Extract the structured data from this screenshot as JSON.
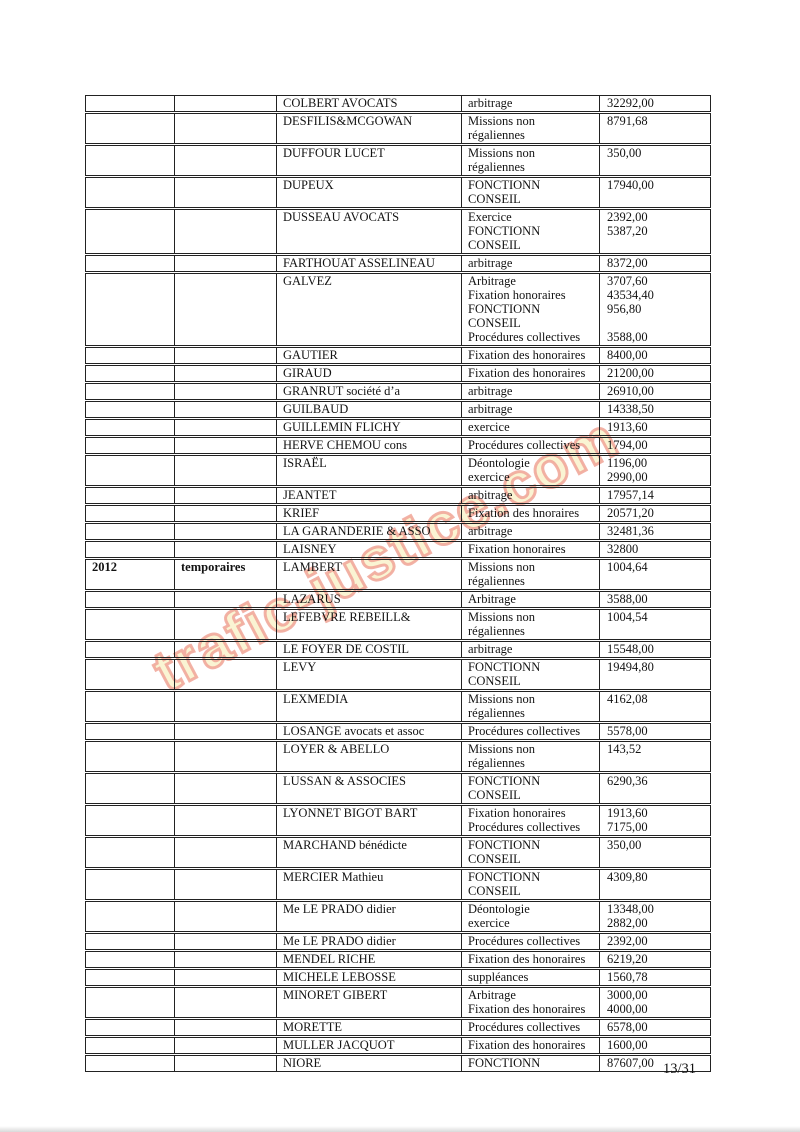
{
  "page": {
    "number_label": "13/31"
  },
  "watermark": {
    "text": "trafic-justice.com",
    "fill_color": "#faf3cf",
    "outline_color": "#ee9b8c"
  },
  "table": {
    "columns": [
      "year",
      "category",
      "firm_name",
      "mission_type",
      "amount"
    ],
    "rows": [
      {
        "year": "",
        "category": "",
        "name": "COLBERT AVOCATS",
        "type": "arbitrage",
        "amount": "32292,00"
      },
      {
        "year": "",
        "category": "",
        "name": "DESFILIS&MCGOWAN",
        "type": "Missions non\nrégaliennes",
        "amount": "8791,68"
      },
      {
        "year": "",
        "category": "",
        "name": "DUFFOUR LUCET",
        "type": "Missions non\nrégaliennes",
        "amount": "350,00"
      },
      {
        "year": "",
        "category": "",
        "name": "DUPEUX",
        "type": "FONCTIONN\nCONSEIL",
        "amount": "17940,00"
      },
      {
        "year": "",
        "category": "",
        "name": "DUSSEAU AVOCATS",
        "type": "Exercice\nFONCTIONN\nCONSEIL",
        "amount": "2392,00\n5387,20"
      },
      {
        "year": "",
        "category": "",
        "name": "FARTHOUAT ASSELINEAU",
        "type": "arbitrage",
        "amount": "8372,00"
      },
      {
        "year": "",
        "category": "",
        "name": "GALVEZ",
        "type": "Arbitrage\nFixation honoraires\nFONCTIONN\nCONSEIL\nProcédures collectives",
        "amount": "3707,60\n43534,40\n956,80\n\n3588,00"
      },
      {
        "year": "",
        "category": "",
        "name": "GAUTIER",
        "type": "Fixation des honoraires",
        "amount": "8400,00"
      },
      {
        "year": "",
        "category": "",
        "name": "GIRAUD",
        "type": "Fixation des honoraires",
        "amount": "21200,00"
      },
      {
        "year": "",
        "category": "",
        "name": "GRANRUT société d’a",
        "type": "arbitrage",
        "amount": "26910,00"
      },
      {
        "year": "",
        "category": "",
        "name": "GUILBAUD",
        "type": "arbitrage",
        "amount": "14338,50"
      },
      {
        "year": "",
        "category": "",
        "name": "GUILLEMIN FLICHY",
        "type": "exercice",
        "amount": "1913,60"
      },
      {
        "year": "",
        "category": "",
        "name": "HERVE CHEMOU cons",
        "type": "Procédures collectives",
        "amount": "1794,00"
      },
      {
        "year": "",
        "category": "",
        "name": "ISRAËL",
        "type": "Déontologie\nexercice",
        "amount": "1196,00\n2990,00"
      },
      {
        "year": "",
        "category": "",
        "name": "JEANTET",
        "type": "arbitrage",
        "amount": "17957,14"
      },
      {
        "year": "",
        "category": "",
        "name": "KRIEF",
        "type": "Fixation des hnoraires",
        "amount": "20571,20"
      },
      {
        "year": "",
        "category": "",
        "name": "LA GARANDERIE & ASSO",
        "type": "arbitrage",
        "amount": "32481,36"
      },
      {
        "year": "",
        "category": "",
        "name": "LAISNEY",
        "type": "Fixation honoraires",
        "amount": "32800"
      },
      {
        "year": "2012",
        "category": "temporaires",
        "name": "LAMBERT",
        "type": "Missions non\nrégaliennes",
        "amount": "1004,64"
      },
      {
        "year": "",
        "category": "",
        "name": "LAZARUS",
        "type": "Arbitrage",
        "amount": "3588,00"
      },
      {
        "year": "",
        "category": "",
        "name": "LEFEBVRE REBEILL&",
        "type": "Missions non\nrégaliennes",
        "amount": "1004,54"
      },
      {
        "year": "",
        "category": "",
        "name": "LE FOYER DE COSTIL",
        "type": "arbitrage",
        "amount": "15548,00"
      },
      {
        "year": "",
        "category": "",
        "name": "LEVY",
        "type": "FONCTIONN\nCONSEIL",
        "amount": "19494,80"
      },
      {
        "year": "",
        "category": "",
        "name": "LEXMEDIA",
        "type": "Missions non\nrégaliennes",
        "amount": "4162,08"
      },
      {
        "year": "",
        "category": "",
        "name": "LOSANGE avocats et assoc",
        "type": "Procédures collectives",
        "amount": "5578,00"
      },
      {
        "year": "",
        "category": "",
        "name": "LOYER & ABELLO",
        "type": "Missions non\nrégaliennes",
        "amount": "143,52"
      },
      {
        "year": "",
        "category": "",
        "name": "LUSSAN & ASSOCIES",
        "type": "FONCTIONN\nCONSEIL",
        "amount": "6290,36"
      },
      {
        "year": "",
        "category": "",
        "name": "LYONNET BIGOT BART",
        "type": "Fixation honoraires\nProcédures collectives",
        "amount": "1913,60\n7175,00"
      },
      {
        "year": "",
        "category": "",
        "name": "MARCHAND bénédicte",
        "type": "FONCTIONN\nCONSEIL",
        "amount": "350,00"
      },
      {
        "year": "",
        "category": "",
        "name": "MERCIER Mathieu",
        "type": "FONCTIONN\nCONSEIL",
        "amount": "4309,80"
      },
      {
        "year": "",
        "category": "",
        "name": "Me LE PRADO didier",
        "type": "Déontologie\nexercice",
        "amount": "13348,00\n2882,00"
      },
      {
        "year": "",
        "category": "",
        "name": "Me LE PRADO didier",
        "type": "Procédures collectives",
        "amount": "2392,00"
      },
      {
        "year": "",
        "category": "",
        "name": "MENDEL RICHE",
        "type": "Fixation des honoraires",
        "amount": "6219,20"
      },
      {
        "year": "",
        "category": "",
        "name": "MICHELE LEBOSSE",
        "type": "suppléances",
        "amount": "1560,78"
      },
      {
        "year": "",
        "category": "",
        "name": "MINORET GIBERT",
        "type": "Arbitrage\nFixation des honoraires",
        "amount": "3000,00\n4000,00"
      },
      {
        "year": "",
        "category": "",
        "name": "MORETTE",
        "type": "Procédures collectives",
        "amount": "6578,00"
      },
      {
        "year": "",
        "category": "",
        "name": "MULLER JACQUOT",
        "type": "Fixation des honoraires",
        "amount": "1600,00"
      },
      {
        "year": "",
        "category": "",
        "name": "NIORE",
        "type": "FONCTIONN",
        "amount": "87607,00"
      }
    ]
  }
}
